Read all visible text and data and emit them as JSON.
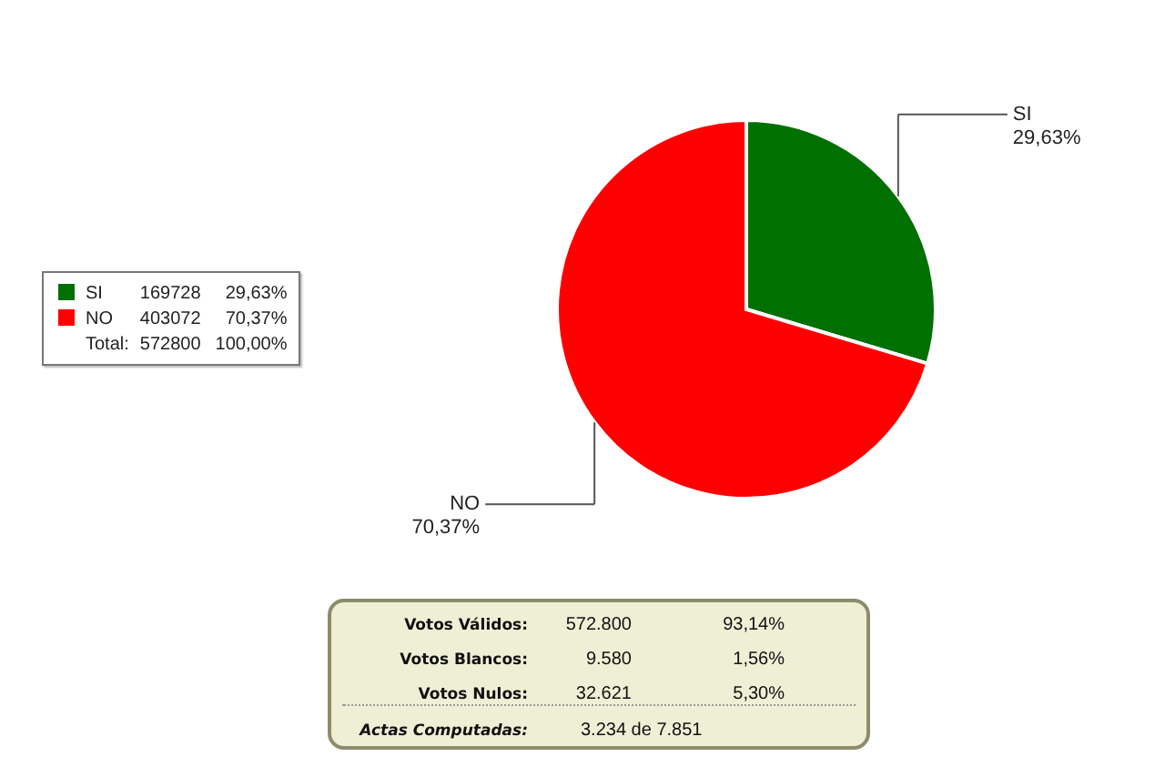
{
  "chart_data": {
    "type": "pie",
    "categories": [
      "SI",
      "NO"
    ],
    "values": [
      29.63,
      70.37
    ],
    "colors": [
      "#007000",
      "#ff0000"
    ],
    "value_labels": [
      "29,63%",
      "70,37%"
    ],
    "legend": "left",
    "annotations": [
      "169728",
      "403072",
      "Total:",
      "572800",
      "100,00%",
      "Votos Válidos:",
      "572.800",
      "93,14%",
      "Votos Blancos:",
      "9.580",
      "1,56%",
      "Votos Nulos:",
      "32.621",
      "5,30%",
      "Actas Computadas:",
      "3.234 de 7.851"
    ]
  }
}
